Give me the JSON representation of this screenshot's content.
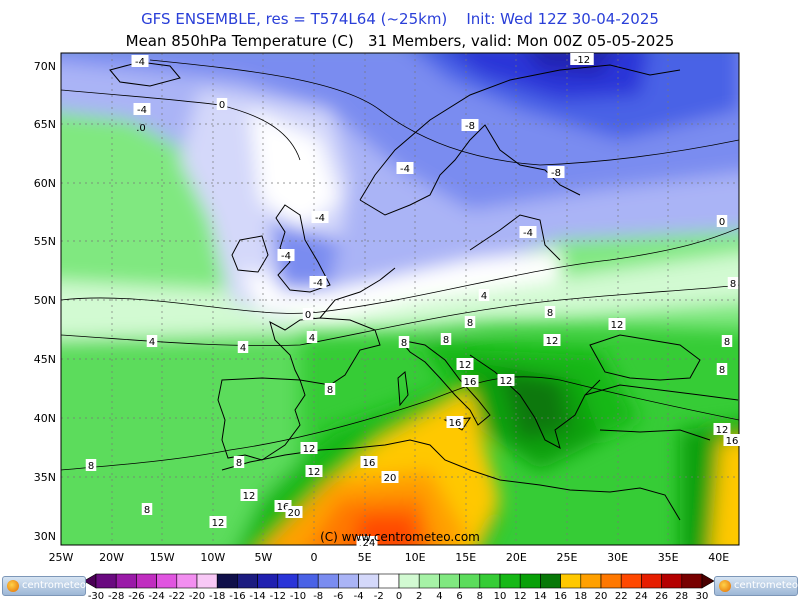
{
  "header": {
    "line1": "GFS ENSEMBLE, res = T574L64 (~25km)    Init: Wed 12Z 30-04-2025",
    "line2": "Mean 850hPa Temperature (C)   31 Members, valid: Mon 00Z 05-05-2025"
  },
  "map": {
    "credit": "(C) www.centrometeo.com",
    "lat_labels": [
      "70N",
      "65N",
      "60N",
      "55N",
      "50N",
      "45N",
      "40N",
      "35N",
      "30N"
    ],
    "lon_labels": [
      "25W",
      "20W",
      "15W",
      "10W",
      "5W",
      "0",
      "5E",
      "10E",
      "15E",
      "20E",
      "25E",
      "30E",
      "35E",
      "40E"
    ],
    "contour_labels": [
      {
        "text": "-4",
        "boxed": true
      },
      {
        "text": "-12",
        "boxed": true
      },
      {
        "text": "0",
        "boxed": true
      },
      {
        "text": ".0",
        "boxed": false
      },
      {
        "text": "-8",
        "boxed": true
      },
      {
        "text": "-4",
        "boxed": true
      },
      {
        "text": "-8",
        "boxed": true
      },
      {
        "text": "-4",
        "boxed": true
      },
      {
        "text": "0",
        "boxed": true
      },
      {
        "text": "-4",
        "boxed": true
      },
      {
        "text": "-4",
        "boxed": true
      },
      {
        "text": "-4",
        "boxed": true
      },
      {
        "text": "-4",
        "boxed": true
      },
      {
        "text": "8",
        "boxed": true
      },
      {
        "text": "4",
        "boxed": true
      },
      {
        "text": "0",
        "boxed": true
      },
      {
        "text": "4",
        "boxed": true
      },
      {
        "text": "4",
        "boxed": true
      },
      {
        "text": "4",
        "boxed": true
      },
      {
        "text": "8",
        "boxed": true
      },
      {
        "text": "8",
        "boxed": true
      },
      {
        "text": "8",
        "boxed": true
      },
      {
        "text": "12",
        "boxed": true
      },
      {
        "text": "12",
        "boxed": true
      },
      {
        "text": "8",
        "boxed": true
      },
      {
        "text": "12",
        "boxed": true
      },
      {
        "text": "16",
        "boxed": true
      },
      {
        "text": "12",
        "boxed": true
      },
      {
        "text": "8",
        "boxed": true
      },
      {
        "text": "8",
        "boxed": true
      },
      {
        "text": "8",
        "boxed": true
      },
      {
        "text": "16",
        "boxed": true
      },
      {
        "text": "12",
        "boxed": true
      },
      {
        "text": "16",
        "boxed": true
      },
      {
        "text": "8",
        "boxed": true
      },
      {
        "text": "12",
        "boxed": true
      },
      {
        "text": "16",
        "boxed": true
      },
      {
        "text": "20",
        "boxed": true
      },
      {
        "text": "8",
        "boxed": true
      },
      {
        "text": "12",
        "boxed": true
      },
      {
        "text": "16",
        "boxed": true
      },
      {
        "text": "20",
        "boxed": true
      },
      {
        "text": "12",
        "boxed": true
      },
      {
        "text": "8",
        "boxed": true
      },
      {
        "text": "12",
        "boxed": true
      },
      {
        "text": "16",
        "boxed": true
      },
      {
        "text": "24",
        "boxed": true
      }
    ]
  },
  "legend": {
    "values": [
      "-30",
      "-28",
      "-26",
      "-24",
      "-22",
      "-20",
      "-18",
      "-16",
      "-14",
      "-12",
      "-10",
      "-8",
      "-6",
      "-4",
      "-2",
      "0",
      "2",
      "4",
      "6",
      "8",
      "10",
      "12",
      "14",
      "16",
      "18",
      "20",
      "22",
      "24",
      "26",
      "28",
      "30"
    ],
    "colors": [
      "#4a0055",
      "#6a0a80",
      "#9a1aa8",
      "#c02ec0",
      "#e055e0",
      "#f28ef0",
      "#f8c8f6",
      "#10104a",
      "#1c1c80",
      "#2020b0",
      "#2a34d8",
      "#4a62e6",
      "#7a8cf0",
      "#aab4f6",
      "#d4d8fa",
      "#ffffff",
      "#d2fad2",
      "#a6f2a6",
      "#80e880",
      "#5cdc5c",
      "#36cc36",
      "#16b816",
      "#08a008",
      "#087808",
      "#ffc800",
      "#ffa000",
      "#ff7800",
      "#ff4800",
      "#e61e00",
      "#b40000",
      "#780000",
      "#4a0000"
    ],
    "logo_text": "centrometeo"
  }
}
